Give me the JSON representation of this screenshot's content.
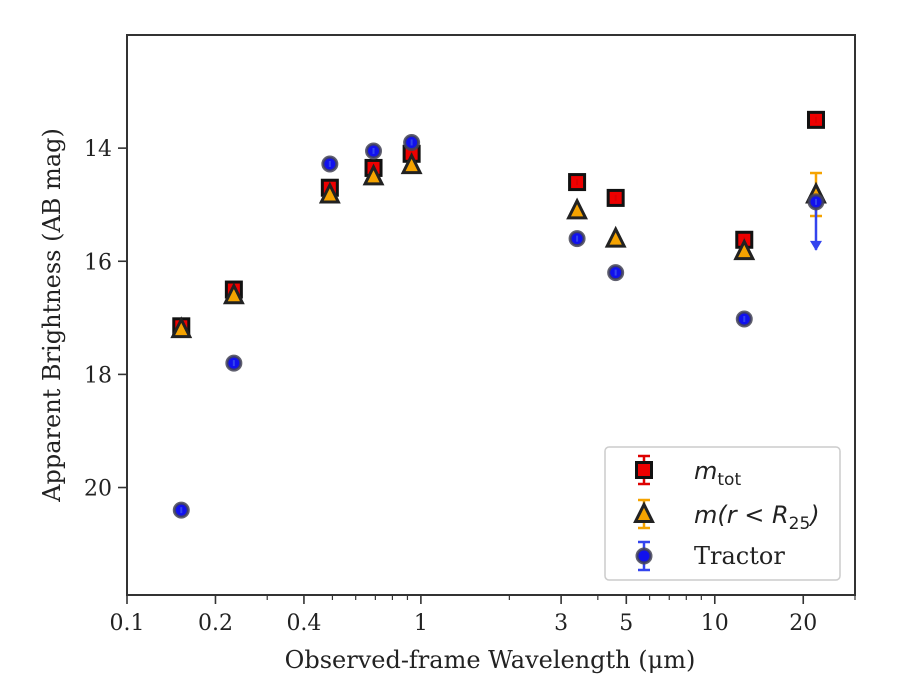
{
  "chart_data": {
    "type": "scatter",
    "xlabel": "Observed-frame Wavelength (μm)",
    "ylabel": "Apparent Brightness (AB mag)",
    "xscale": "log",
    "xlim": [
      0.1,
      30
    ],
    "ylim": [
      21.9,
      12.0
    ],
    "y_inverted": true,
    "grid": false,
    "legend_position": "bottom-right",
    "x_ticks": [
      {
        "value": 0.1,
        "label": "0.1"
      },
      {
        "value": 0.2,
        "label": "0.2"
      },
      {
        "value": 0.4,
        "label": "0.4"
      },
      {
        "value": 1,
        "label": "1"
      },
      {
        "value": 3,
        "label": "3"
      },
      {
        "value": 5,
        "label": "5"
      },
      {
        "value": 10,
        "label": "10"
      },
      {
        "value": 20,
        "label": "20"
      }
    ],
    "x_minor_ticks": [
      0.3,
      0.5,
      0.6,
      0.7,
      0.8,
      0.9,
      2,
      4,
      6,
      7,
      8,
      9,
      30
    ],
    "y_ticks": [
      {
        "value": 14,
        "label": "14"
      },
      {
        "value": 16,
        "label": "16"
      },
      {
        "value": 18,
        "label": "18"
      },
      {
        "value": 20,
        "label": "20"
      }
    ],
    "series": [
      {
        "name": "m_tot",
        "marker": "square",
        "color": "#ee0000",
        "edge": "#111111",
        "error_color": "#dd0000",
        "points": [
          {
            "x": 0.153,
            "y": 17.15
          },
          {
            "x": 0.231,
            "y": 16.5
          },
          {
            "x": 0.49,
            "y": 14.7
          },
          {
            "x": 0.69,
            "y": 14.35
          },
          {
            "x": 0.93,
            "y": 14.1
          },
          {
            "x": 3.4,
            "y": 14.6
          },
          {
            "x": 4.6,
            "y": 14.88
          },
          {
            "x": 12.6,
            "y": 15.62
          },
          {
            "x": 22.1,
            "y": 13.5
          }
        ]
      },
      {
        "name": "m(r < R25)",
        "marker": "triangle",
        "color": "#f5a300",
        "edge": "#222222",
        "error_color": "#f5a300",
        "points": [
          {
            "x": 0.153,
            "y": 17.2
          },
          {
            "x": 0.231,
            "y": 16.6
          },
          {
            "x": 0.49,
            "y": 14.82
          },
          {
            "x": 0.69,
            "y": 14.5
          },
          {
            "x": 0.93,
            "y": 14.3
          },
          {
            "x": 3.4,
            "y": 15.1
          },
          {
            "x": 4.6,
            "y": 15.6
          },
          {
            "x": 12.6,
            "y": 15.82
          },
          {
            "x": 22.1,
            "y": 14.82,
            "yerr": 0.38
          }
        ]
      },
      {
        "name": "Tractor",
        "marker": "circle",
        "color": "#1111ee",
        "edge": "#444455",
        "error_color": "#3344ee",
        "points": [
          {
            "x": 0.153,
            "y": 20.4
          },
          {
            "x": 0.231,
            "y": 17.8
          },
          {
            "x": 0.49,
            "y": 14.28
          },
          {
            "x": 0.69,
            "y": 14.05
          },
          {
            "x": 0.93,
            "y": 13.9
          },
          {
            "x": 3.4,
            "y": 15.6
          },
          {
            "x": 4.6,
            "y": 16.2
          },
          {
            "x": 12.6,
            "y": 17.02
          },
          {
            "x": 22.1,
            "y": 14.95,
            "upper_limit": true
          }
        ]
      }
    ],
    "legend": [
      {
        "key": "mtot",
        "base": "m",
        "sub": "tot"
      },
      {
        "key": "mr25",
        "prefix": "m(r < R",
        "sub": "25",
        "suffix": ")"
      },
      {
        "key": "tractor",
        "text": "Tractor"
      }
    ]
  }
}
